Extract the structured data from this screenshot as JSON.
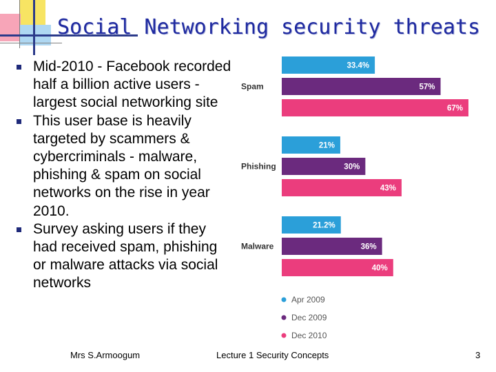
{
  "slide": {
    "title": "Social Networking security threats",
    "bullets": [
      "Mid-2010 - Facebook recorded half a billion active users - largest social networking site",
      "This user base is heavily targeted by scammers & cybercriminals - malware, phishing & spam on social networks on the rise in year 2010.",
      "Survey asking users if they had received spam, phishing or malware attacks via social networks"
    ],
    "footer": {
      "author": "Mrs S.Armoogum",
      "course": "Lecture 1 Security Concepts",
      "page": "3"
    }
  },
  "colors": {
    "title": "#1f2aa0",
    "apr2009": "#2b9fd9",
    "dec2009": "#6b2a7e",
    "dec2010": "#eb3d7d"
  },
  "chart_data": {
    "type": "bar",
    "orientation": "horizontal",
    "categories": [
      "Spam",
      "Phishing",
      "Malware"
    ],
    "series": [
      {
        "name": "Apr 2009",
        "values": [
          33.4,
          21,
          21.2
        ],
        "labels": [
          "33.4%",
          "21%",
          "21.2%"
        ],
        "color": "#2b9fd9"
      },
      {
        "name": "Dec 2009",
        "values": [
          57,
          30,
          36
        ],
        "labels": [
          "57%",
          "30%",
          "36%"
        ],
        "color": "#6b2a7e"
      },
      {
        "name": "Dec 2010",
        "values": [
          67,
          43,
          40
        ],
        "labels": [
          "67%",
          "43%",
          "40%"
        ],
        "color": "#eb3d7d"
      }
    ],
    "xlim": [
      0,
      67
    ],
    "grid": false,
    "legend_position": "bottom-left"
  }
}
